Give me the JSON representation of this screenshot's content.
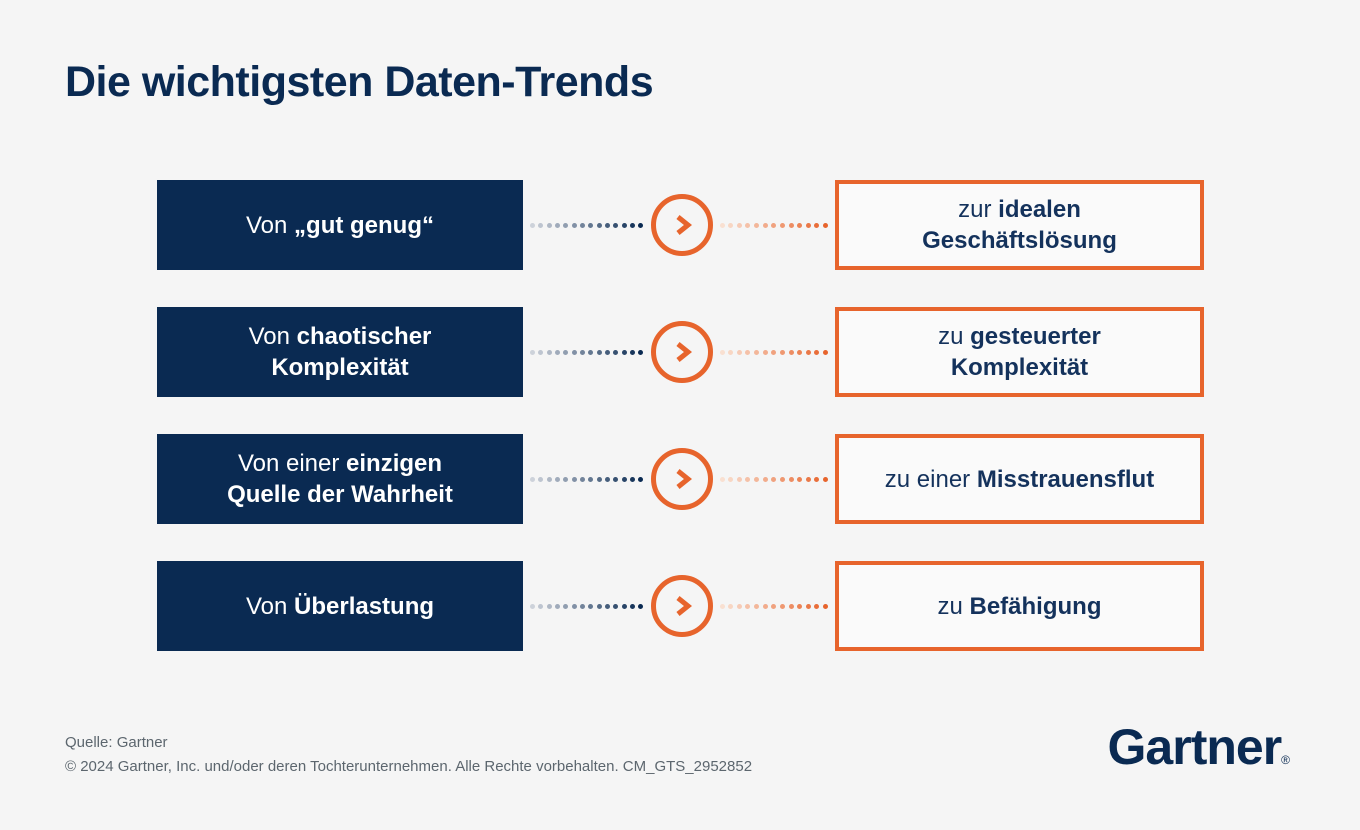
{
  "title": "Die wichtigsten Daten-Trends",
  "colors": {
    "background": "#f5f5f5",
    "navy": "#0a2a52",
    "navy_text": "#14325c",
    "orange": "#e7642c",
    "to_box_fill": "#fafafa",
    "from_box_text": "#ffffff",
    "dot_left_start": "#cdd2da",
    "dot_left_end": "#0a2a52",
    "dot_right_start": "#f9e0d1",
    "dot_right_end": "#e7642c",
    "footer_gray": "#5c666e"
  },
  "connector": {
    "left_dot_count": 14,
    "right_dot_count": 13
  },
  "rows": [
    {
      "from": {
        "lines": [
          [
            {
              "t": "Von ",
              "b": false
            },
            {
              "t": "„gut genug“",
              "b": true
            }
          ]
        ]
      },
      "to": {
        "lines": [
          [
            {
              "t": "zur ",
              "b": false
            },
            {
              "t": "idealen",
              "b": true
            }
          ],
          [
            {
              "t": "Geschäftslösung",
              "b": true
            }
          ]
        ]
      }
    },
    {
      "from": {
        "lines": [
          [
            {
              "t": "Von ",
              "b": false
            },
            {
              "t": "chaotischer",
              "b": true
            }
          ],
          [
            {
              "t": "Komplexität",
              "b": true
            }
          ]
        ]
      },
      "to": {
        "lines": [
          [
            {
              "t": "zu ",
              "b": false
            },
            {
              "t": "gesteuerter",
              "b": true
            }
          ],
          [
            {
              "t": "Komplexität",
              "b": true
            }
          ]
        ]
      }
    },
    {
      "from": {
        "lines": [
          [
            {
              "t": "Von einer ",
              "b": false
            },
            {
              "t": "einzigen",
              "b": true
            }
          ],
          [
            {
              "t": "Quelle der Wahrheit",
              "b": true
            }
          ]
        ]
      },
      "to": {
        "lines": [
          [
            {
              "t": "zu einer ",
              "b": false
            },
            {
              "t": "Misstrauensflut",
              "b": true
            }
          ]
        ]
      }
    },
    {
      "from": {
        "lines": [
          [
            {
              "t": "Von ",
              "b": false
            },
            {
              "t": "Überlastung",
              "b": true
            }
          ]
        ]
      },
      "to": {
        "lines": [
          [
            {
              "t": "zu ",
              "b": false
            },
            {
              "t": "Befähigung",
              "b": true
            }
          ]
        ]
      }
    }
  ],
  "footer": {
    "source": "Quelle: Gartner",
    "copyright": "© 2024 Gartner, Inc. und/oder deren Tochterunternehmen. Alle Rechte vorbehalten. CM_GTS_2952852"
  },
  "logo": {
    "text": "Gartner",
    "registered_mark": "®"
  }
}
